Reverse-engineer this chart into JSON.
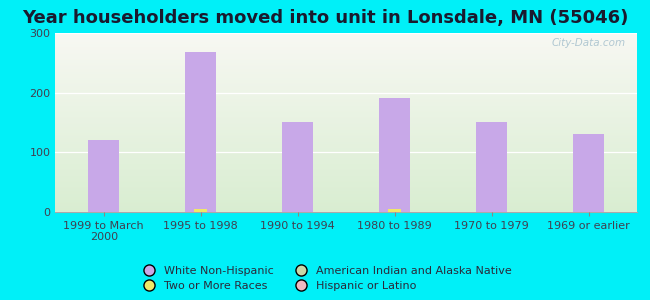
{
  "title": "Year householders moved into unit in Lonsdale, MN (55046)",
  "categories": [
    "1999 to March\n2000",
    "1995 to 1998",
    "1990 to 1994",
    "1980 to 1989",
    "1970 to 1979",
    "1969 or earlier"
  ],
  "white_non_hispanic": [
    120,
    268,
    150,
    190,
    150,
    130
  ],
  "two_or_more": [
    0,
    4,
    0,
    4,
    0,
    0
  ],
  "american_indian": [
    0,
    0,
    0,
    0,
    0,
    0
  ],
  "hispanic": [
    0,
    0,
    0,
    0,
    0,
    0
  ],
  "ylim": [
    0,
    300
  ],
  "yticks": [
    0,
    100,
    200,
    300
  ],
  "bar_color_white": "#c8a8e8",
  "bar_color_indian": "#c8d8a8",
  "bar_color_two": "#f0e868",
  "bar_color_hispanic": "#f0b8c0",
  "background_outer": "#00f0f8",
  "legend_items_col1": [
    {
      "label": "White Non-Hispanic",
      "color": "#c8a8e8"
    },
    {
      "label": "Two or More Races",
      "color": "#f0e868"
    }
  ],
  "legend_items_col2": [
    {
      "label": "American Indian and Alaska Native",
      "color": "#c8d8a8"
    },
    {
      "label": "Hispanic or Latino",
      "color": "#f0b8c0"
    }
  ],
  "watermark": "City-Data.com",
  "title_fontsize": 13,
  "tick_fontsize": 8,
  "legend_fontsize": 8,
  "bar_width": 0.32
}
